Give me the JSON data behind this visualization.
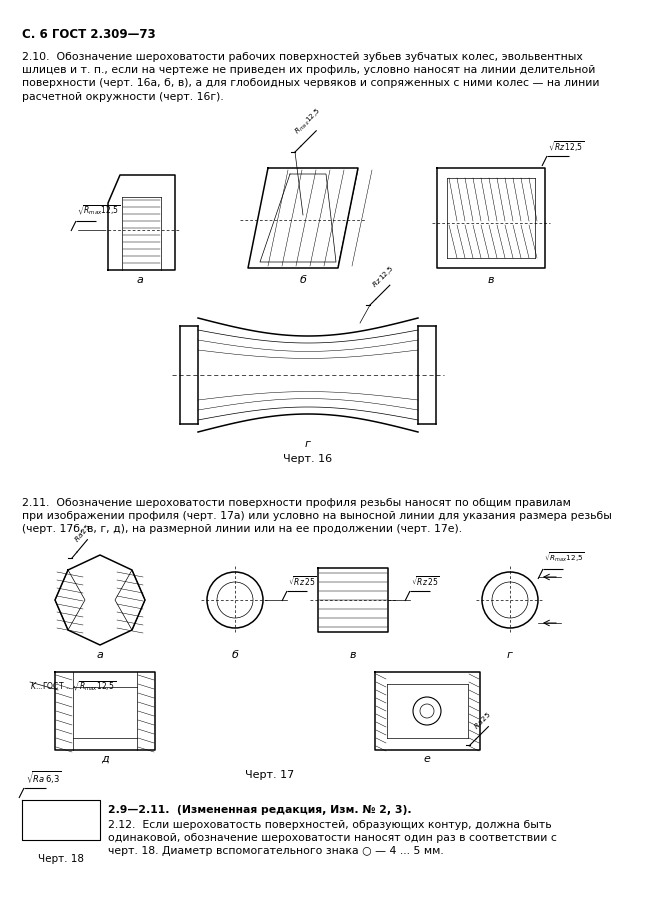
{
  "background_color": "#ffffff",
  "text_color": "#000000",
  "page_header": "С. 6 ГОСТ 2.309—73",
  "para_210": "2.10.  Обозначение шероховатости рабочих поверхностей зубьев зубчатых колес, эвольвентных\nшлицев и т. п., если на чертеже не приведен их профиль, условно наносят на линии делительной\nповерхности (черт. 16а, б, в), а для глобоидных червяков и сопряженных с ними колес — на линии\nрасчетной окружности (черт. 16г).",
  "chert16": "Черт. 16",
  "para_211": "2.11.  Обозначение шероховатости поверхности профиля резьбы наносят по общим правилам\nпри изображении профиля (черт. 17а) или условно на выносной линии для указания размера резьбы\n(черт. 17б, в, г, д), на размерной линии или на ее продолжении (черт. 17е).",
  "chert17": "Черт. 17",
  "para_2911_bold": "2.9—2.11.  (Измененная редакция, Изм. № 2, 3).",
  "para_212": "2.12.  Если шероховатость поверхностей, образующих контур, должна быть\nодинаковой, обозначение шероховатости наносят один раз в соответствии с\nчерт. 18. Диаметр вспомогательного знака ○ — 4 ... 5 мм.",
  "chert18": "Черт. 18"
}
